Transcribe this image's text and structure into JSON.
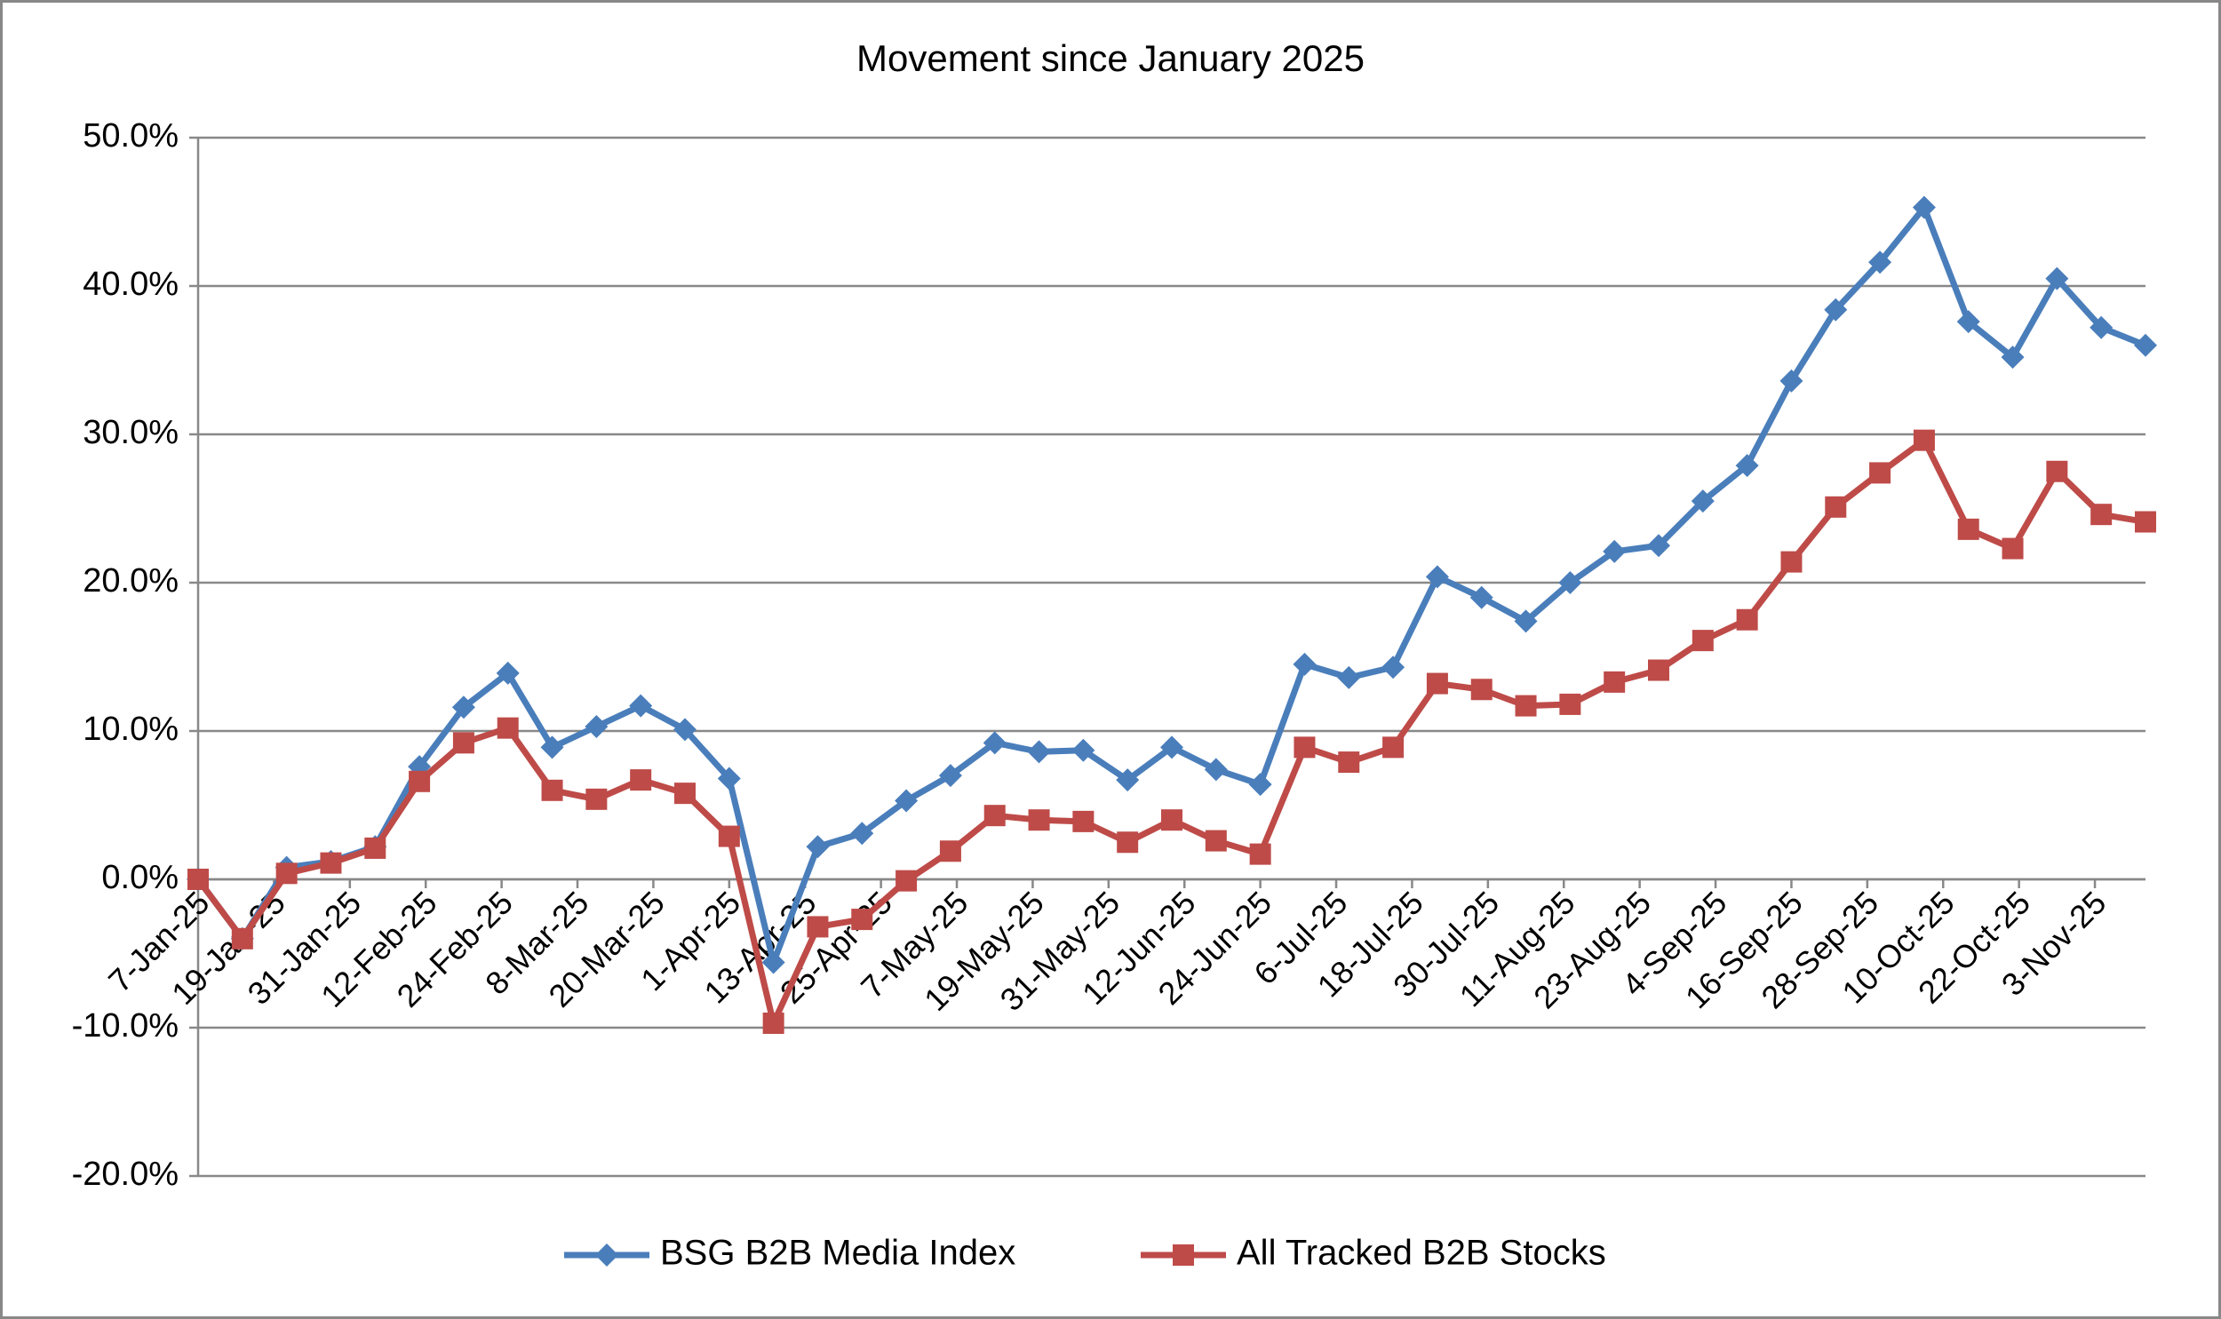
{
  "chart_data": {
    "type": "line",
    "title": "Movement since January 2025",
    "x": [
      "2025-01-07",
      "2025-01-14",
      "2025-01-21",
      "2025-01-28",
      "2025-02-04",
      "2025-02-11",
      "2025-02-18",
      "2025-02-25",
      "2025-03-04",
      "2025-03-11",
      "2025-03-18",
      "2025-03-25",
      "2025-04-01",
      "2025-04-08",
      "2025-04-15",
      "2025-04-22",
      "2025-04-29",
      "2025-05-06",
      "2025-05-13",
      "2025-05-20",
      "2025-05-27",
      "2025-06-03",
      "2025-06-10",
      "2025-06-17",
      "2025-06-24",
      "2025-07-01",
      "2025-07-08",
      "2025-07-15",
      "2025-07-22",
      "2025-07-29",
      "2025-08-05",
      "2025-08-12",
      "2025-08-19",
      "2025-08-26",
      "2025-09-02",
      "2025-09-09",
      "2025-09-16",
      "2025-09-23",
      "2025-09-30",
      "2025-10-07",
      "2025-10-14",
      "2025-10-21",
      "2025-10-28",
      "2025-11-04",
      "2025-11-11"
    ],
    "series": [
      {
        "name": "BSG B2B Media Index",
        "color": "#4a7ebb",
        "marker": "diamond",
        "values": [
          0,
          -4.0,
          0.8,
          1.2,
          2.2,
          7.6,
          11.6,
          13.9,
          8.9,
          10.3,
          11.7,
          10.1,
          6.8,
          -5.6,
          2.2,
          3.1,
          5.3,
          7.0,
          9.2,
          8.6,
          8.7,
          6.7,
          8.9,
          7.4,
          6.4,
          14.5,
          13.6,
          14.3,
          20.4,
          19.0,
          17.4,
          20.0,
          22.1,
          22.5,
          25.5,
          27.9,
          33.6,
          38.4,
          41.6,
          45.3,
          37.6,
          35.2,
          40.5,
          37.2,
          36.0
        ]
      },
      {
        "name": "All Tracked B2B Stocks",
        "color": "#be4b48",
        "marker": "square",
        "values": [
          0,
          -4.0,
          0.4,
          1.1,
          2.1,
          6.6,
          9.2,
          10.2,
          6.0,
          5.4,
          6.7,
          5.8,
          2.9,
          -9.7,
          -3.2,
          -2.7,
          -0.1,
          1.9,
          4.3,
          4.0,
          3.9,
          2.5,
          4.0,
          2.6,
          1.7,
          8.9,
          7.9,
          8.9,
          13.2,
          12.8,
          11.7,
          11.8,
          13.3,
          14.1,
          16.1,
          17.5,
          21.4,
          25.1,
          27.4,
          29.6,
          23.6,
          22.3,
          27.5,
          24.6,
          24.1
        ]
      }
    ],
    "xlim": [
      "2025-01-07",
      "2025-11-11"
    ],
    "xticks": [
      {
        "value": "2025-01-07",
        "label": "7-Jan-25"
      },
      {
        "value": "2025-01-19",
        "label": "19-Jan-25"
      },
      {
        "value": "2025-01-31",
        "label": "31-Jan-25"
      },
      {
        "value": "2025-02-12",
        "label": "12-Feb-25"
      },
      {
        "value": "2025-02-24",
        "label": "24-Feb-25"
      },
      {
        "value": "2025-03-08",
        "label": "8-Mar-25"
      },
      {
        "value": "2025-03-20",
        "label": "20-Mar-25"
      },
      {
        "value": "2025-04-01",
        "label": "1-Apr-25"
      },
      {
        "value": "2025-04-13",
        "label": "13-Apr-25"
      },
      {
        "value": "2025-04-25",
        "label": "25-Apr-25"
      },
      {
        "value": "2025-05-07",
        "label": "7-May-25"
      },
      {
        "value": "2025-05-19",
        "label": "19-May-25"
      },
      {
        "value": "2025-05-31",
        "label": "31-May-25"
      },
      {
        "value": "2025-06-12",
        "label": "12-Jun-25"
      },
      {
        "value": "2025-06-24",
        "label": "24-Jun-25"
      },
      {
        "value": "2025-07-06",
        "label": "6-Jul-25"
      },
      {
        "value": "2025-07-18",
        "label": "18-Jul-25"
      },
      {
        "value": "2025-07-30",
        "label": "30-Jul-25"
      },
      {
        "value": "2025-08-11",
        "label": "11-Aug-25"
      },
      {
        "value": "2025-08-23",
        "label": "23-Aug-25"
      },
      {
        "value": "2025-09-04",
        "label": "4-Sep-25"
      },
      {
        "value": "2025-09-16",
        "label": "16-Sep-25"
      },
      {
        "value": "2025-09-28",
        "label": "28-Sep-25"
      },
      {
        "value": "2025-10-10",
        "label": "10-Oct-25"
      },
      {
        "value": "2025-10-22",
        "label": "22-Oct-25"
      },
      {
        "value": "2025-11-03",
        "label": "3-Nov-25"
      }
    ],
    "ylim": [
      -20,
      50
    ],
    "yticks": [
      {
        "value": -20,
        "label": "-20.0%"
      },
      {
        "value": -10,
        "label": "-10.0%"
      },
      {
        "value": 0,
        "label": "0.0%"
      },
      {
        "value": 10,
        "label": "10.0%"
      },
      {
        "value": 20,
        "label": "20.0%"
      },
      {
        "value": 30,
        "label": "30.0%"
      },
      {
        "value": 40,
        "label": "40.0%"
      },
      {
        "value": 50,
        "label": "50.0%"
      }
    ],
    "grid": true,
    "legend": "bottom"
  }
}
